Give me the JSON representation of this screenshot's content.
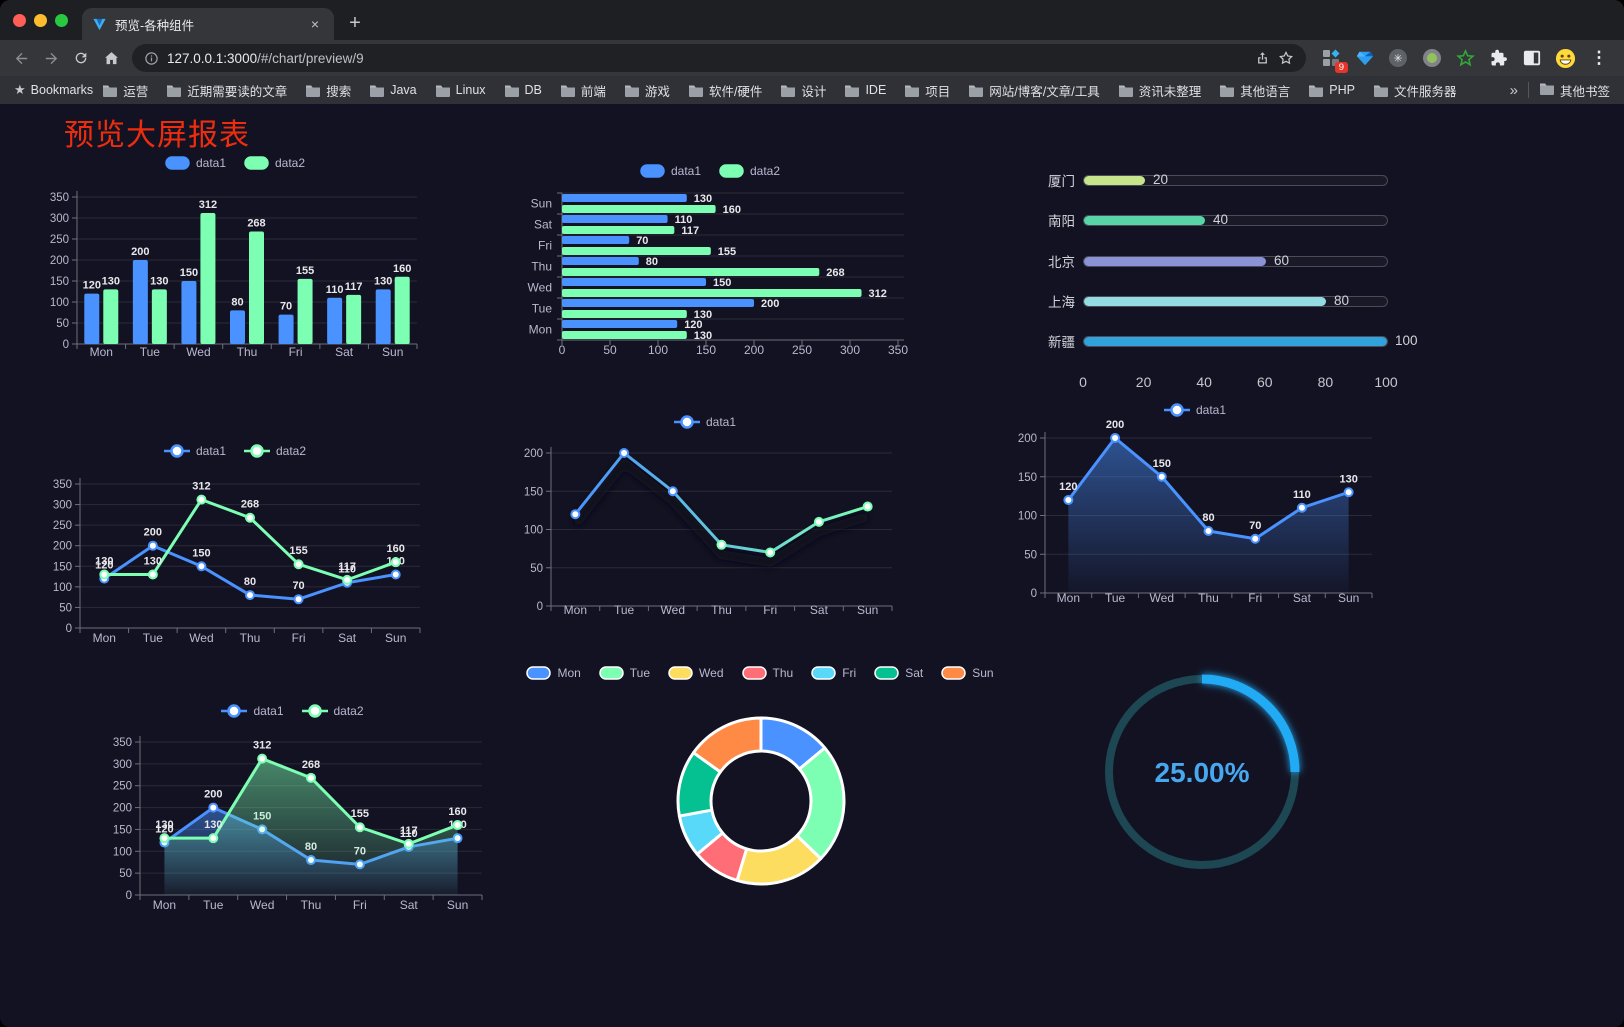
{
  "browser": {
    "tab_title": "预览-各种组件",
    "url_host": "127.0.0.1:3000",
    "url_path": "/#/chart/preview/9",
    "bookmarks_bar_label": "Bookmarks",
    "bookmarks": [
      "运营",
      "近期需要读的文章",
      "搜索",
      "Java",
      "Linux",
      "DB",
      "前端",
      "游戏",
      "软件/硬件",
      "设计",
      "IDE",
      "项目",
      "网站/博客/文章/工具",
      "资讯未整理",
      "其他语言",
      "PHP",
      "文件服务器"
    ],
    "other_bookmarks_label": "其他书签",
    "extension_badge_count": "9"
  },
  "icons": {
    "tab_close": "×",
    "new_tab": "+",
    "overflow_chevron": "»",
    "menu_dots": "⋮",
    "bookmarks_star": "★"
  },
  "page": {
    "heading": "预览大屏报表",
    "heading_color": "#ee2d0e",
    "background": "#131222"
  },
  "chart_data": [
    {
      "id": "grouped-bar",
      "type": "bar",
      "categories": [
        "Mon",
        "Tue",
        "Wed",
        "Thu",
        "Fri",
        "Sat",
        "Sun"
      ],
      "series": [
        {
          "name": "data1",
          "color": "#4992ff",
          "values": [
            120,
            200,
            150,
            80,
            70,
            110,
            130
          ]
        },
        {
          "name": "data2",
          "color": "#7cffb2",
          "values": [
            130,
            130,
            312,
            268,
            155,
            117,
            160
          ]
        }
      ],
      "ylim": [
        0,
        350
      ],
      "ystep": 50,
      "legend_position": "top",
      "grid": true,
      "value_labels": true
    },
    {
      "id": "horizontal-bar",
      "type": "bar-horizontal",
      "categories": [
        "Mon",
        "Tue",
        "Wed",
        "Thu",
        "Fri",
        "Sat",
        "Sun"
      ],
      "series": [
        {
          "name": "data1",
          "color": "#4992ff",
          "values": [
            120,
            200,
            150,
            80,
            70,
            110,
            130
          ]
        },
        {
          "name": "data2",
          "color": "#7cffb2",
          "values": [
            130,
            130,
            312,
            268,
            155,
            117,
            160
          ]
        }
      ],
      "xlim": [
        0,
        350
      ],
      "xstep": 50,
      "legend_position": "top",
      "value_labels": true,
      "category_order_displayed_top_to_bottom": [
        "Sun",
        "Sat",
        "Fri",
        "Thu",
        "Wed",
        "Tue",
        "Mon"
      ]
    },
    {
      "id": "progress-bars",
      "type": "bar-progress",
      "xlim": [
        0,
        100
      ],
      "xticks": [
        0,
        20,
        40,
        60,
        80,
        100
      ],
      "rows": [
        {
          "label": "厦门",
          "value": 20,
          "color": "#c6e48b"
        },
        {
          "label": "南阳",
          "value": 40,
          "color": "#58d5a6"
        },
        {
          "label": "北京",
          "value": 60,
          "color": "#8b93d6"
        },
        {
          "label": "上海",
          "value": 80,
          "color": "#93dde2"
        },
        {
          "label": "新疆",
          "value": 100,
          "color": "#32a2dc"
        }
      ]
    },
    {
      "id": "two-line",
      "type": "line",
      "categories": [
        "Mon",
        "Tue",
        "Wed",
        "Thu",
        "Fri",
        "Sat",
        "Sun"
      ],
      "series": [
        {
          "name": "data1",
          "color": "#4992ff",
          "values": [
            120,
            200,
            150,
            80,
            70,
            110,
            130
          ]
        },
        {
          "name": "data2",
          "color": "#7cffb2",
          "values": [
            130,
            130,
            312,
            268,
            155,
            117,
            160
          ]
        }
      ],
      "ylim": [
        0,
        350
      ],
      "ystep": 50,
      "legend_position": "top",
      "value_labels": true
    },
    {
      "id": "gradient-line",
      "type": "line",
      "categories": [
        "Mon",
        "Tue",
        "Wed",
        "Thu",
        "Fri",
        "Sat",
        "Sun"
      ],
      "series": [
        {
          "name": "data1",
          "color": "#4992ff",
          "color_end": "#7cffb2",
          "values": [
            120,
            200,
            150,
            80,
            70,
            110,
            130
          ]
        }
      ],
      "ylim": [
        0,
        200
      ],
      "ystep": 50,
      "legend_position": "top",
      "value_labels": false
    },
    {
      "id": "area-line",
      "type": "area",
      "categories": [
        "Mon",
        "Tue",
        "Wed",
        "Thu",
        "Fri",
        "Sat",
        "Sun"
      ],
      "series": [
        {
          "name": "data1",
          "color": "#4992ff",
          "values": [
            120,
            200,
            150,
            80,
            70,
            110,
            130
          ]
        }
      ],
      "ylim": [
        0,
        200
      ],
      "ystep": 50,
      "legend_position": "top",
      "value_labels": true
    },
    {
      "id": "two-area",
      "type": "area",
      "categories": [
        "Mon",
        "Tue",
        "Wed",
        "Thu",
        "Fri",
        "Sat",
        "Sun"
      ],
      "series": [
        {
          "name": "data1",
          "color": "#4992ff",
          "values": [
            120,
            200,
            150,
            80,
            70,
            110,
            130
          ]
        },
        {
          "name": "data2",
          "color": "#7cffb2",
          "values": [
            130,
            130,
            312,
            268,
            155,
            117,
            160
          ]
        }
      ],
      "ylim": [
        0,
        350
      ],
      "ystep": 50,
      "legend_position": "top",
      "value_labels": true
    },
    {
      "id": "donut-pie",
      "type": "pie",
      "categories": [
        "Mon",
        "Tue",
        "Wed",
        "Thu",
        "Fri",
        "Sat",
        "Sun"
      ],
      "values": [
        120,
        200,
        150,
        80,
        70,
        110,
        130
      ],
      "colors": [
        "#4992ff",
        "#7cffb2",
        "#fddd60",
        "#ff6e76",
        "#58d9f9",
        "#05c091",
        "#ff8a45"
      ],
      "inner_radius_ratio": 0.6,
      "legend_position": "top"
    },
    {
      "id": "gauge",
      "type": "gauge",
      "value": 25,
      "max": 100,
      "label": "25.00%",
      "progress_color": "#22abf5",
      "track_color": "#1d4752",
      "text_color": "#47a8f0"
    }
  ]
}
